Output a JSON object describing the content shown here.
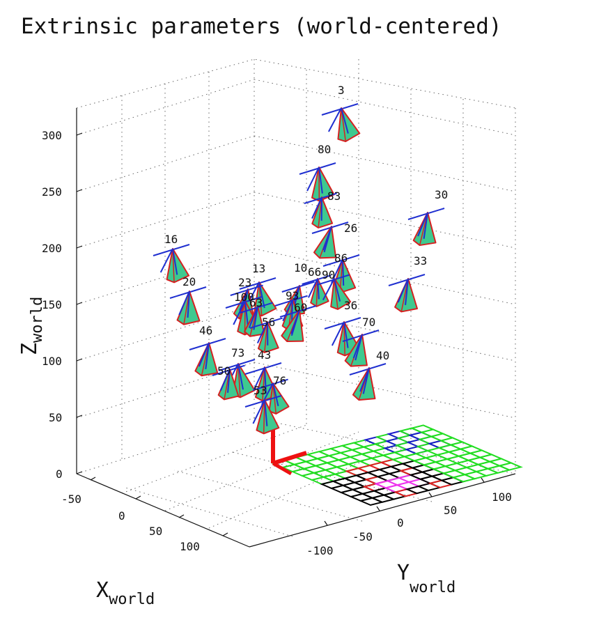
{
  "chart_data": {
    "type": "scatter",
    "title": "Extrinsic parameters (world-centered)",
    "xlabel": {
      "main": "X",
      "sub": "world"
    },
    "ylabel": {
      "main": "Y",
      "sub": "world"
    },
    "zlabel": {
      "main": "Z",
      "sub": "world"
    },
    "xlim": [
      -50,
      120
    ],
    "ylim": [
      -120,
      120
    ],
    "zlim": [
      0,
      330
    ],
    "x_ticks": [
      "-50",
      "0",
      "50",
      "100"
    ],
    "y_ticks": [
      "-100",
      "-50",
      "0",
      "50",
      "100"
    ],
    "z_ticks": [
      "0",
      "50",
      "100",
      "150",
      "200",
      "250",
      "300"
    ],
    "grid": true,
    "cameras": [
      {
        "label": "3",
        "z": 300
      },
      {
        "label": "80",
        "z": 255
      },
      {
        "label": "83",
        "z": 225
      },
      {
        "label": "30",
        "z": 215
      },
      {
        "label": "26",
        "z": 200
      },
      {
        "label": "16",
        "z": 185
      },
      {
        "label": "86",
        "z": 180
      },
      {
        "label": "33",
        "z": 160
      },
      {
        "label": "13",
        "z": 155
      },
      {
        "label": "10",
        "z": 155
      },
      {
        "label": "66",
        "z": 152
      },
      {
        "label": "90",
        "z": 150
      },
      {
        "label": "23",
        "z": 150
      },
      {
        "label": "20",
        "z": 150
      },
      {
        "label": "93",
        "z": 140
      },
      {
        "label": "100",
        "z": 140
      },
      {
        "label": "63",
        "z": 138
      },
      {
        "label": "60",
        "z": 130
      },
      {
        "label": "36",
        "z": 125
      },
      {
        "label": "56",
        "z": 120
      },
      {
        "label": "70",
        "z": 110
      },
      {
        "label": "46",
        "z": 110
      },
      {
        "label": "73",
        "z": 95
      },
      {
        "label": "43",
        "z": 92
      },
      {
        "label": "50",
        "z": 90
      },
      {
        "label": "40",
        "z": 85
      },
      {
        "label": "76",
        "z": 80
      },
      {
        "label": "53",
        "z": 70
      }
    ],
    "calibration_grid": {
      "colors": [
        "green",
        "black",
        "blue",
        "red",
        "magenta"
      ]
    }
  },
  "colors": {
    "camera_fill": "#3ec98f",
    "camera_edge": "#d62020",
    "camera_axis": "#1f2fd0",
    "grid_green": "#22dd22",
    "grid_black": "#000000",
    "grid_blue": "#1a1acc",
    "grid_red": "#dd2222",
    "grid_magenta": "#ee33ee",
    "world_axis": "#ee1111"
  }
}
